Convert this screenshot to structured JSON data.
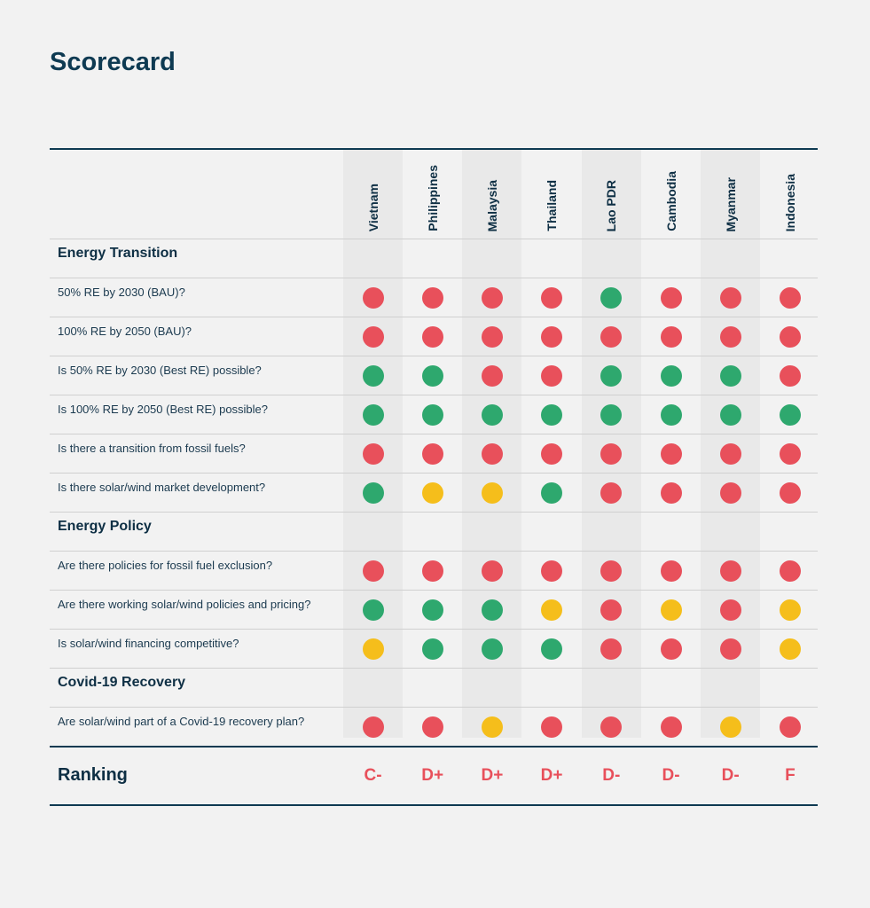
{
  "title": "Scorecard",
  "colors": {
    "red": "#e8505b",
    "green": "#2ea86e",
    "yellow": "#f5be1b"
  },
  "countries": [
    "Vietnam",
    "Philippines",
    "Malaysia",
    "Thailand",
    "Lao PDR",
    "Cambodia",
    "Myanmar",
    "Indonesia"
  ],
  "sections": [
    {
      "name": "Energy Transition",
      "rows": [
        {
          "label": "50% RE by 2030 (BAU)?",
          "ratings": [
            "red",
            "red",
            "red",
            "red",
            "green",
            "red",
            "red",
            "red"
          ]
        },
        {
          "label": "100% RE by 2050 (BAU)?",
          "ratings": [
            "red",
            "red",
            "red",
            "red",
            "red",
            "red",
            "red",
            "red"
          ]
        },
        {
          "label": "Is 50% RE by 2030 (Best RE) possible?",
          "ratings": [
            "green",
            "green",
            "red",
            "red",
            "green",
            "green",
            "green",
            "red"
          ]
        },
        {
          "label": "Is 100% RE by 2050 (Best RE) possible?",
          "ratings": [
            "green",
            "green",
            "green",
            "green",
            "green",
            "green",
            "green",
            "green"
          ]
        },
        {
          "label": "Is there a transition from fossil fuels?",
          "ratings": [
            "red",
            "red",
            "red",
            "red",
            "red",
            "red",
            "red",
            "red"
          ]
        },
        {
          "label": "Is there solar/wind market development?",
          "ratings": [
            "green",
            "yellow",
            "yellow",
            "green",
            "red",
            "red",
            "red",
            "red"
          ]
        }
      ]
    },
    {
      "name": "Energy Policy",
      "rows": [
        {
          "label": "Are there policies for fossil fuel exclusion?",
          "ratings": [
            "red",
            "red",
            "red",
            "red",
            "red",
            "red",
            "red",
            "red"
          ]
        },
        {
          "label": "Are there working solar/wind policies and pricing?",
          "ratings": [
            "green",
            "green",
            "green",
            "yellow",
            "red",
            "yellow",
            "red",
            "yellow"
          ]
        },
        {
          "label": "Is solar/wind financing competitive?",
          "ratings": [
            "yellow",
            "green",
            "green",
            "green",
            "red",
            "red",
            "red",
            "yellow"
          ]
        }
      ]
    },
    {
      "name": "Covid-19 Recovery",
      "rows": [
        {
          "label": "Are solar/wind part of a Covid-19 recovery plan?",
          "ratings": [
            "red",
            "red",
            "yellow",
            "red",
            "red",
            "red",
            "yellow",
            "red"
          ]
        }
      ]
    }
  ],
  "ranking": {
    "label": "Ranking",
    "grades": [
      "C-",
      "D+",
      "D+",
      "D+",
      "D-",
      "D-",
      "D-",
      "F"
    ]
  }
}
